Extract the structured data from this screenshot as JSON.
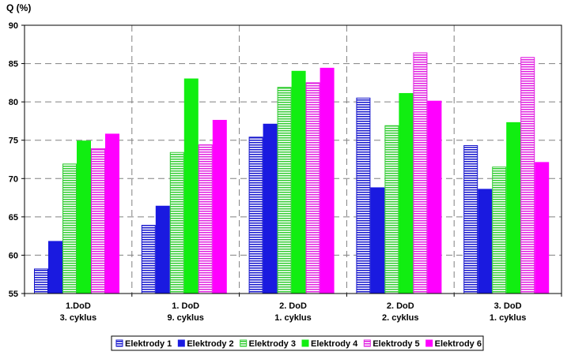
{
  "chart_data": {
    "type": "bar",
    "ylabel": "Q (%)",
    "ylim": [
      55,
      90
    ],
    "ytick_step": 5,
    "grid": true,
    "legend_position": "bottom",
    "categories": [
      [
        "1.DoD",
        "3. cyklus"
      ],
      [
        "1. DoD",
        "9. cyklus"
      ],
      [
        "2. DoD",
        "1. cyklus"
      ],
      [
        "2. DoD",
        "2. cyklus"
      ],
      [
        "3. DoD",
        "1. cyklus"
      ]
    ],
    "series": [
      {
        "name": "Elektrody 1",
        "color": "#1414cc",
        "pattern": "striped",
        "values": [
          58.2,
          63.9,
          75.4,
          80.5,
          74.3
        ]
      },
      {
        "name": "Elektrody 2",
        "color": "#1a1ae0",
        "pattern": "solid",
        "values": [
          61.8,
          66.4,
          77.1,
          68.8,
          68.6
        ]
      },
      {
        "name": "Elektrody 3",
        "color": "#33cc33",
        "pattern": "striped",
        "values": [
          71.9,
          73.4,
          81.9,
          76.9,
          71.5
        ]
      },
      {
        "name": "Elektrody 4",
        "color": "#11ee11",
        "pattern": "solid",
        "values": [
          74.9,
          83.0,
          84.0,
          81.1,
          77.3
        ]
      },
      {
        "name": "Elektrody 5",
        "color": "#e020e0",
        "pattern": "striped",
        "values": [
          73.9,
          74.4,
          82.5,
          86.4,
          85.8
        ]
      },
      {
        "name": "Elektrody 6",
        "color": "#ff00ff",
        "pattern": "solid",
        "values": [
          75.8,
          77.6,
          84.4,
          80.1,
          72.1
        ]
      }
    ]
  }
}
